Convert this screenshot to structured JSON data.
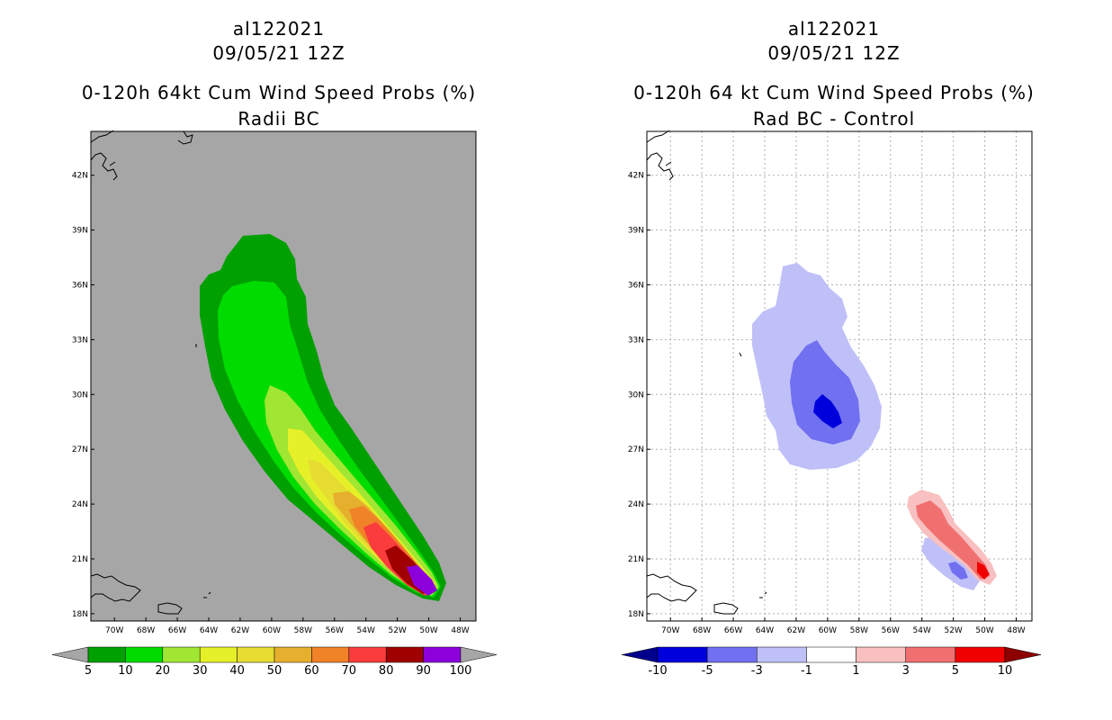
{
  "chart_data": [
    {
      "type": "heatmap",
      "storm_id": "al122021",
      "date": "09/05/21 12Z",
      "title": "0-120h 64kt Cum Wind Speed Probs (%)",
      "subtitle": "Radii BC",
      "x_ticks": [
        "70W",
        "68W",
        "66W",
        "64W",
        "62W",
        "60W",
        "58W",
        "56W",
        "54W",
        "52W",
        "50W",
        "48W"
      ],
      "y_ticks": [
        "18N",
        "21N",
        "24N",
        "27N",
        "30N",
        "33N",
        "36N",
        "39N",
        "42N"
      ],
      "xlim_deg_west": [
        71.5,
        47.0
      ],
      "ylim_deg_north": [
        17.6,
        44.4
      ],
      "grid": false,
      "colorbar": {
        "labels": [
          "5",
          "10",
          "20",
          "30",
          "40",
          "50",
          "60",
          "70",
          "80",
          "90",
          "100"
        ],
        "colors": [
          "#00a000",
          "#00dc00",
          "#a0e632",
          "#e6f028",
          "#e6dc32",
          "#e6af2d",
          "#f08228",
          "#fa3c3c",
          "#a00000",
          "#8c00dc"
        ],
        "under_color": "#a6a6a6",
        "over_color": "#a6a6a6"
      }
    },
    {
      "type": "heatmap",
      "storm_id": "al122021",
      "date": "09/05/21 12Z",
      "title": "0-120h 64 kt Cum Wind Speed Probs (%)",
      "subtitle": "Rad BC - Control",
      "x_ticks": [
        "70W",
        "68W",
        "66W",
        "64W",
        "62W",
        "60W",
        "58W",
        "56W",
        "54W",
        "52W",
        "50W",
        "48W"
      ],
      "y_ticks": [
        "18N",
        "21N",
        "24N",
        "27N",
        "30N",
        "33N",
        "36N",
        "39N",
        "42N"
      ],
      "xlim_deg_west": [
        71.5,
        47.0
      ],
      "ylim_deg_north": [
        17.6,
        44.4
      ],
      "grid": true,
      "colorbar": {
        "labels": [
          "-10",
          "-5",
          "-3",
          "-1",
          "1",
          "3",
          "5",
          "10"
        ],
        "colors": [
          "#0000dc",
          "#7070f0",
          "#c0c0f8",
          "#ffffff",
          "#f8c0c0",
          "#f07070",
          "#f00000"
        ],
        "under_color": "#00008c",
        "over_color": "#8c0000"
      }
    }
  ]
}
